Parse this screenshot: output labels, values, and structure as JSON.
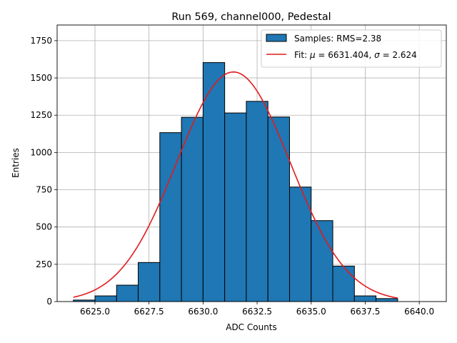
{
  "chart_data": {
    "type": "bar",
    "title": "Run 569, channel000, Pedestal",
    "xlabel": "ADC Counts",
    "ylabel": "Entries",
    "xlim": [
      6623.25,
      6641.25
    ],
    "ylim": [
      0,
      1855
    ],
    "xticks": [
      6625.0,
      6627.5,
      6630.0,
      6632.5,
      6635.0,
      6637.5,
      6640.0
    ],
    "xtick_labels": [
      "6625.0",
      "6627.5",
      "6630.0",
      "6632.5",
      "6635.0",
      "6637.5",
      "6640.0"
    ],
    "yticks": [
      0,
      250,
      500,
      750,
      1000,
      1250,
      1500,
      1750
    ],
    "ytick_labels": [
      "0",
      "250",
      "500",
      "750",
      "1000",
      "1250",
      "1500",
      "1750"
    ],
    "grid": true,
    "legend_position": "top-right",
    "histogram": {
      "name": "Samples: RMS=2.38",
      "color": "#1f77b4",
      "edge_color": "#000000",
      "bin_edges": [
        6624,
        6625,
        6626,
        6627,
        6628,
        6629,
        6630,
        6631,
        6632,
        6633,
        6634,
        6635,
        6636,
        6637,
        6638,
        6639
      ],
      "counts": [
        10,
        38,
        110,
        262,
        1133,
        1236,
        1603,
        1265,
        1343,
        1238,
        768,
        543,
        238,
        38,
        20
      ]
    },
    "fit": {
      "name": "Fit: $\\mu$ = 6631.404, $\\sigma$ = 2.624",
      "legend_prefix": "Fit: ",
      "mu_symbol": "μ",
      "mu_text": " = 6631.404, ",
      "sigma_symbol": "σ",
      "sigma_text": " = 2.624",
      "color": "#e31a1c",
      "mu": 6631.404,
      "sigma": 2.624,
      "amplitude": 1540,
      "x_range": [
        6624,
        6639
      ]
    }
  }
}
